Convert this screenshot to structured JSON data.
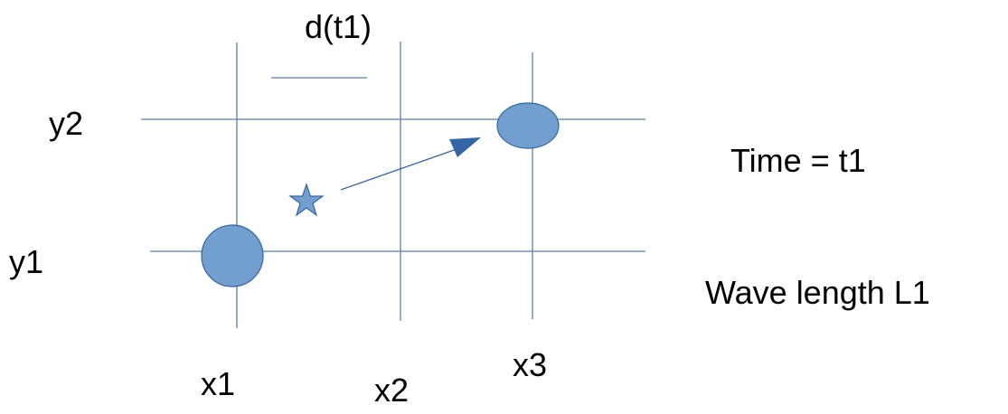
{
  "labels": {
    "d_t1": "d(t1)",
    "y2": "y2",
    "y1": "y1",
    "x1": "x1",
    "x2": "x2",
    "x3": "x3",
    "time": "Time = t1",
    "wavelength": "Wave length L1"
  },
  "colors": {
    "grid_line": "#5a7fa8",
    "point_fill": "#729fcf",
    "point_stroke": "#3465a4",
    "arrow": "#3465a4",
    "star_fill": "#729fcf",
    "star_stroke": "#3465a4",
    "text": "#000000"
  }
}
